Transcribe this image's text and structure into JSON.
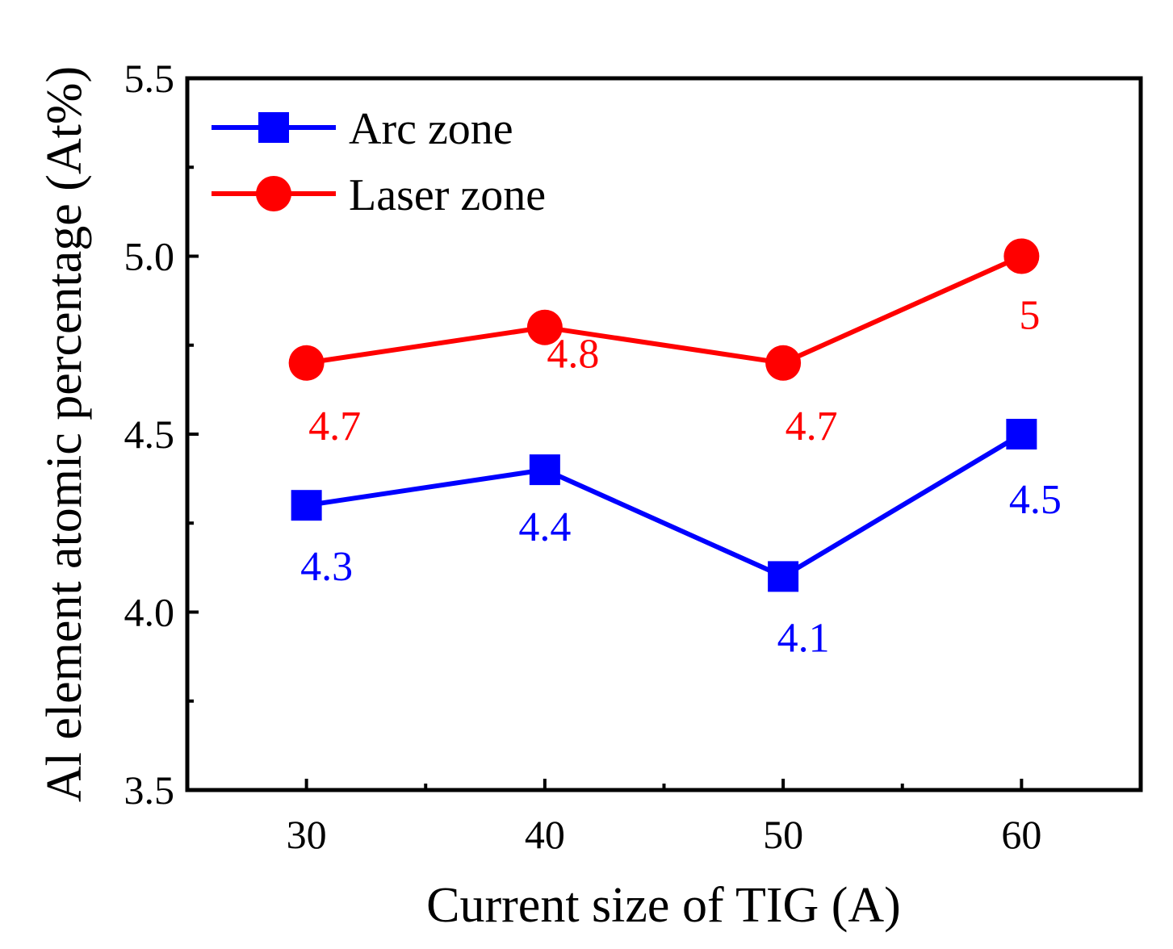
{
  "chart_data": {
    "type": "line",
    "title": "",
    "xlabel": "Current size of TIG (A)",
    "ylabel": "Al element atomic percentage (At%)",
    "x": [
      30,
      40,
      50,
      60
    ],
    "x_tick_labels": [
      "30",
      "40",
      "50",
      "60"
    ],
    "xlim": [
      25,
      65
    ],
    "ylim": [
      3.5,
      5.5
    ],
    "y_ticks": [
      3.5,
      4.0,
      4.5,
      5.0,
      5.5
    ],
    "y_tick_labels": [
      "3.5",
      "4.0",
      "4.5",
      "5.0",
      "5.5"
    ],
    "grid": false,
    "legend_position": "top-left",
    "series": [
      {
        "name": "Arc zone",
        "color": "#0000ff",
        "marker": "square",
        "values": [
          4.3,
          4.4,
          4.1,
          4.5
        ],
        "data_labels": [
          "4.3",
          "4.4",
          "4.1",
          "4.5"
        ]
      },
      {
        "name": "Laser zone",
        "color": "#ff0000",
        "marker": "circle",
        "values": [
          4.7,
          4.8,
          4.7,
          5.0
        ],
        "data_labels": [
          "4.7",
          "4.8",
          "4.7",
          "5"
        ]
      }
    ]
  }
}
